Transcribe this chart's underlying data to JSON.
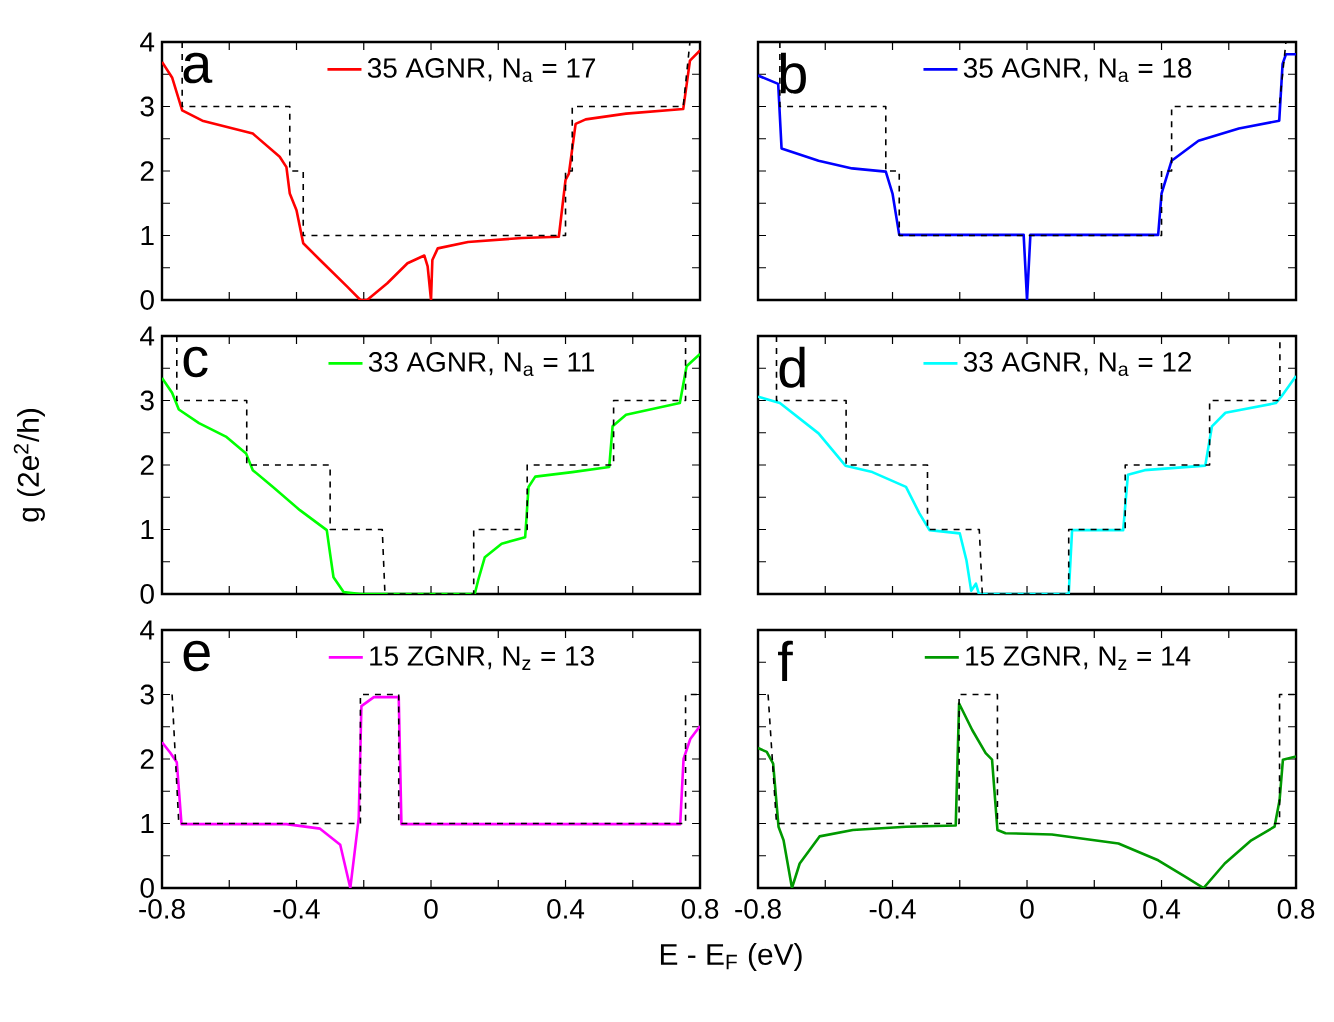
{
  "chart_data": [
    {
      "type": "line",
      "annotations": [
        "a"
      ],
      "xlim": [
        -0.8,
        0.8
      ],
      "ylim": [
        0,
        4
      ],
      "xticks": [
        -0.8,
        {
          "value": -0.6,
          "label": null
        },
        -0.4,
        {
          "value": -0.2,
          "label": null
        },
        0,
        {
          "value": 0.2,
          "label": null
        },
        0.4,
        {
          "value": 0.6,
          "label": null
        },
        0.8
      ],
      "yticks": [
        0,
        {
          "value": 0.5,
          "label": null
        },
        1,
        {
          "value": 1.5,
          "label": null
        },
        2,
        {
          "value": 2.5,
          "label": null
        },
        3,
        {
          "value": 3.5,
          "label": null
        },
        4
      ],
      "tick_labels": "y",
      "legend": "top",
      "marker": "none",
      "series": [
        {
          "name": "35 AGNR, N$_{a}$ = 17",
          "color": "#ff0000",
          "line_style": "solid",
          "x": [
            -0.8,
            -0.77,
            -0.74,
            -0.68,
            -0.53,
            -0.45,
            -0.43,
            -0.42,
            -0.4,
            -0.38,
            -0.33,
            -0.25,
            -0.21,
            -0.19,
            -0.13,
            -0.07,
            -0.02,
            -0.01,
            0.0,
            0.004,
            0.02,
            0.11,
            0.27,
            0.38,
            0.4,
            0.41,
            0.43,
            0.46,
            0.58,
            0.75,
            0.77,
            0.8
          ],
          "values": [
            3.69,
            3.45,
            2.94,
            2.78,
            2.58,
            2.22,
            2.06,
            1.65,
            1.39,
            0.88,
            0.62,
            0.21,
            0.0,
            0.0,
            0.26,
            0.57,
            0.69,
            0.52,
            0.0,
            0.62,
            0.8,
            0.9,
            0.96,
            0.98,
            1.86,
            1.96,
            2.73,
            2.8,
            2.89,
            2.96,
            3.71,
            3.87
          ]
        },
        {
          "color": "#000000",
          "line_style": "dashed",
          "x": [
            -0.74,
            -0.74,
            -0.42,
            -0.42,
            -0.38,
            -0.38,
            0.4,
            0.4,
            0.42,
            0.42,
            0.75,
            0.77
          ],
          "values": [
            4,
            3,
            3,
            2,
            2,
            1,
            1,
            2,
            2,
            3,
            3,
            4
          ]
        }
      ]
    },
    {
      "type": "line",
      "annotations": [
        "b"
      ],
      "xlim": [
        -0.8,
        0.8
      ],
      "ylim": [
        0,
        4
      ],
      "xticks": [
        -0.8,
        {
          "value": -0.6,
          "label": null
        },
        -0.4,
        {
          "value": -0.2,
          "label": null
        },
        0,
        {
          "value": 0.2,
          "label": null
        },
        0.4,
        {
          "value": 0.6,
          "label": null
        },
        0.8
      ],
      "yticks": [
        0,
        {
          "value": 0.5,
          "label": null
        },
        1,
        {
          "value": 1.5,
          "label": null
        },
        2,
        {
          "value": 2.5,
          "label": null
        },
        3,
        {
          "value": 3.5,
          "label": null
        },
        4
      ],
      "tick_labels": false,
      "legend": "top",
      "marker": "none",
      "series": [
        {
          "name": "35 AGNR, N$_{a}$ = 18",
          "color": "#0000ff",
          "line_style": "solid",
          "x": [
            -0.8,
            -0.74,
            -0.73,
            -0.62,
            -0.52,
            -0.42,
            -0.4,
            -0.38,
            -0.01,
            0.0,
            0.01,
            0.39,
            0.4,
            0.43,
            0.51,
            0.63,
            0.75,
            0.76,
            0.77,
            0.8
          ],
          "values": [
            3.48,
            3.35,
            2.35,
            2.16,
            2.04,
            1.99,
            1.65,
            1.01,
            1.01,
            0.0,
            1.01,
            1.01,
            1.65,
            2.16,
            2.47,
            2.66,
            2.78,
            3.66,
            3.81,
            3.81
          ]
        },
        {
          "color": "#000000",
          "line_style": "dashed",
          "x": [
            -0.735,
            -0.735,
            -0.42,
            -0.42,
            -0.38,
            -0.38,
            0.4,
            0.4,
            0.43,
            0.43,
            0.75,
            0.77
          ],
          "values": [
            4,
            3,
            3,
            2,
            2,
            1,
            1,
            2,
            2,
            3,
            3,
            4
          ]
        }
      ]
    },
    {
      "type": "line",
      "annotations": [
        "c"
      ],
      "ylabel": "g (2e$^{2}$/h)",
      "xlim": [
        -0.8,
        0.8
      ],
      "ylim": [
        0,
        4
      ],
      "xticks": [
        -0.8,
        {
          "value": -0.6,
          "label": null
        },
        -0.4,
        {
          "value": -0.2,
          "label": null
        },
        0,
        {
          "value": 0.2,
          "label": null
        },
        0.4,
        {
          "value": 0.6,
          "label": null
        },
        0.8
      ],
      "yticks": [
        0,
        {
          "value": 0.5,
          "label": null
        },
        1,
        {
          "value": 1.5,
          "label": null
        },
        2,
        {
          "value": 2.5,
          "label": null
        },
        3,
        {
          "value": 3.5,
          "label": null
        },
        4
      ],
      "tick_labels": "y",
      "legend": "top",
      "marker": "none",
      "series": [
        {
          "name": "33 AGNR, N$_{a}$ = 11",
          "color": "#00ff00",
          "line_style": "solid",
          "x": [
            -0.8,
            -0.77,
            -0.75,
            -0.69,
            -0.61,
            -0.55,
            -0.53,
            -0.47,
            -0.39,
            -0.31,
            -0.3,
            -0.29,
            -0.26,
            -0.21,
            0.13,
            0.14,
            0.16,
            0.21,
            0.28,
            0.29,
            0.31,
            0.42,
            0.53,
            0.54,
            0.58,
            0.74,
            0.76,
            0.8
          ],
          "values": [
            3.35,
            3.12,
            2.86,
            2.65,
            2.44,
            2.18,
            1.92,
            1.66,
            1.3,
            0.99,
            0.62,
            0.26,
            0.03,
            0.0,
            0.0,
            0.21,
            0.57,
            0.78,
            0.88,
            1.66,
            1.82,
            1.89,
            1.97,
            2.6,
            2.78,
            2.96,
            3.53,
            3.72
          ]
        },
        {
          "color": "#000000",
          "line_style": "dashed",
          "x": [
            -0.756,
            -0.756,
            -0.548,
            -0.548,
            -0.3,
            -0.3,
            -0.145,
            -0.137,
            0.127,
            0.127,
            0.286,
            0.286,
            0.543,
            0.543,
            0.757,
            0.757
          ],
          "values": [
            4,
            3,
            3,
            2,
            2,
            1,
            1,
            0,
            0,
            1,
            1,
            2,
            2,
            3,
            3,
            4
          ]
        }
      ]
    },
    {
      "type": "line",
      "annotations": [
        "d"
      ],
      "xlim": [
        -0.8,
        0.8
      ],
      "ylim": [
        0,
        4
      ],
      "xticks": [
        -0.8,
        {
          "value": -0.6,
          "label": null
        },
        -0.4,
        {
          "value": -0.2,
          "label": null
        },
        0,
        {
          "value": 0.2,
          "label": null
        },
        0.4,
        {
          "value": 0.6,
          "label": null
        },
        0.8
      ],
      "yticks": [
        0,
        {
          "value": 0.5,
          "label": null
        },
        1,
        {
          "value": 1.5,
          "label": null
        },
        2,
        {
          "value": 2.5,
          "label": null
        },
        3,
        {
          "value": 3.5,
          "label": null
        },
        4
      ],
      "tick_labels": false,
      "legend": "top",
      "marker": "none",
      "series": [
        {
          "name": "33 AGNR, N$_{a}$ = 12",
          "color": "#00ffff",
          "line_style": "solid",
          "x": [
            -0.8,
            -0.735,
            -0.62,
            -0.54,
            -0.46,
            -0.36,
            -0.32,
            -0.29,
            -0.2,
            -0.18,
            -0.166,
            -0.152,
            -0.143,
            0.124,
            0.134,
            0.286,
            0.3,
            0.35,
            0.53,
            0.55,
            0.59,
            0.74,
            0.756,
            0.8
          ],
          "values": [
            3.06,
            2.96,
            2.49,
            1.99,
            1.89,
            1.66,
            1.25,
            0.99,
            0.94,
            0.52,
            0.05,
            0.16,
            0.0,
            0.0,
            0.99,
            0.99,
            1.85,
            1.92,
            1.99,
            2.6,
            2.81,
            2.96,
            3.06,
            3.38
          ]
        },
        {
          "color": "#000000",
          "line_style": "dashed",
          "x": [
            -0.745,
            -0.745,
            -0.538,
            -0.538,
            -0.296,
            -0.296,
            -0.142,
            -0.133,
            0.124,
            0.124,
            0.292,
            0.292,
            0.543,
            0.543,
            0.752,
            0.752
          ],
          "values": [
            4,
            3,
            3,
            2,
            2,
            1,
            1,
            0,
            0,
            1,
            1,
            2,
            2,
            3,
            3,
            4
          ]
        }
      ]
    },
    {
      "type": "line",
      "annotations": [
        "e"
      ],
      "xlabel": "E - E$_{F}$ (eV)",
      "xlim": [
        -0.8,
        0.8
      ],
      "ylim": [
        0,
        4
      ],
      "xticks": [
        -0.8,
        {
          "value": -0.6,
          "label": null
        },
        -0.4,
        {
          "value": -0.2,
          "label": null
        },
        0,
        {
          "value": 0.2,
          "label": null
        },
        0.4,
        {
          "value": 0.6,
          "label": null
        },
        0.8
      ],
      "yticks": [
        0,
        {
          "value": 0.5,
          "label": null
        },
        1,
        {
          "value": 1.5,
          "label": null
        },
        2,
        {
          "value": 2.5,
          "label": null
        },
        3,
        {
          "value": 3.5,
          "label": null
        },
        4
      ],
      "legend": "top",
      "marker": "none",
      "series": [
        {
          "name": "15 ZGNR, N$_{z}$ = 13",
          "color": "#ff00ff",
          "line_style": "solid",
          "x": [
            -0.8,
            -0.776,
            -0.756,
            -0.742,
            -0.43,
            -0.33,
            -0.27,
            -0.24,
            -0.227,
            -0.215,
            -0.207,
            -0.17,
            -0.096,
            -0.088,
            0.741,
            0.751,
            0.771,
            0.8
          ],
          "values": [
            2.26,
            2.1,
            1.95,
            0.99,
            0.99,
            0.92,
            0.67,
            0.0,
            0.56,
            1.08,
            2.82,
            2.96,
            2.96,
            0.99,
            0.99,
            2.0,
            2.31,
            2.51
          ]
        },
        {
          "color": "#000000",
          "line_style": "dashed",
          "x": [
            -0.77,
            -0.75,
            -0.21,
            -0.21,
            -0.096,
            -0.096,
            0.757,
            0.757,
            0.8
          ],
          "values": [
            3,
            1,
            1,
            3,
            3,
            1,
            1,
            3,
            3
          ]
        }
      ]
    },
    {
      "type": "line",
      "annotations": [
        "f"
      ],
      "xlim": [
        -0.8,
        0.8
      ],
      "ylim": [
        0,
        4
      ],
      "xticks": [
        -0.8,
        {
          "value": -0.6,
          "label": null
        },
        -0.4,
        {
          "value": -0.2,
          "label": null
        },
        0,
        {
          "value": 0.2,
          "label": null
        },
        0.4,
        {
          "value": 0.6,
          "label": null
        },
        0.8
      ],
      "yticks": [
        0,
        {
          "value": 0.5,
          "label": null
        },
        1,
        {
          "value": 1.5,
          "label": null
        },
        2,
        {
          "value": 2.5,
          "label": null
        },
        3,
        {
          "value": 3.5,
          "label": null
        },
        4
      ],
      "tick_labels": "x",
      "legend": "top",
      "marker": "none",
      "series": [
        {
          "name": "15 ZGNR, N$_{z}$ = 14",
          "color": "#009900",
          "line_style": "solid",
          "x": [
            -0.8,
            -0.774,
            -0.755,
            -0.739,
            -0.724,
            -0.699,
            -0.676,
            -0.617,
            -0.518,
            -0.36,
            -0.212,
            -0.202,
            -0.163,
            -0.123,
            -0.104,
            -0.088,
            -0.064,
            0.074,
            0.272,
            0.39,
            0.469,
            0.525,
            0.588,
            0.667,
            0.736,
            0.751,
            0.761,
            0.8
          ],
          "values": [
            2.17,
            2.11,
            1.93,
            0.95,
            0.74,
            0.0,
            0.38,
            0.8,
            0.9,
            0.95,
            0.97,
            2.86,
            2.45,
            2.09,
            1.99,
            0.9,
            0.85,
            0.83,
            0.69,
            0.43,
            0.18,
            0.0,
            0.38,
            0.74,
            0.95,
            1.36,
            1.99,
            2.04
          ]
        },
        {
          "color": "#000000",
          "line_style": "dashed",
          "x": [
            -0.77,
            -0.745,
            -0.202,
            -0.202,
            -0.088,
            -0.088,
            0.751,
            0.751,
            0.8
          ],
          "values": [
            3,
            1,
            1,
            3,
            3,
            1,
            1,
            3,
            3
          ]
        }
      ]
    }
  ]
}
